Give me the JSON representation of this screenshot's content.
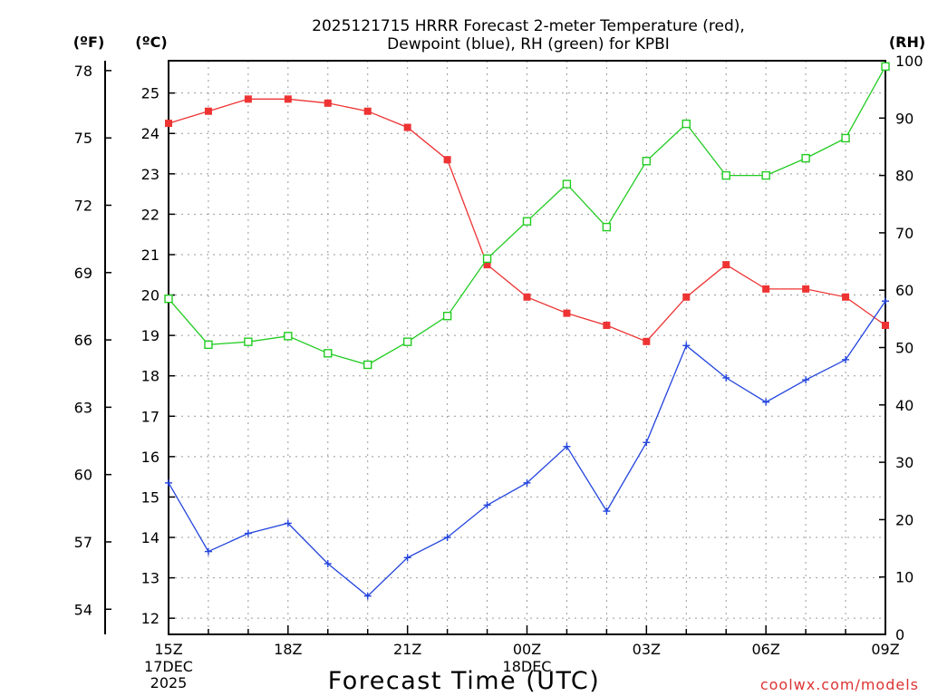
{
  "chart_data": {
    "type": "line",
    "title_line1": "2025121715 HRRR Forecast 2-meter Temperature (red),",
    "title_line2": "Dewpoint (blue), RH (green) for KPBI",
    "unit_labels": {
      "fahrenheit": "(ºF)",
      "celsius": "(ºC)",
      "rh": "(RH)"
    },
    "xlabel": "Forecast Time (UTC)",
    "credit": "coolwx.com/models",
    "x_hours": [
      0,
      1,
      2,
      3,
      4,
      5,
      6,
      7,
      8,
      9,
      10,
      11,
      12,
      13,
      14,
      15,
      16,
      17,
      18
    ],
    "x_ticks": [
      {
        "hour": 0,
        "label": "15Z",
        "sub1": "17DEC",
        "sub2": "2025"
      },
      {
        "hour": 3,
        "label": "18Z",
        "sub1": "",
        "sub2": ""
      },
      {
        "hour": 6,
        "label": "21Z",
        "sub1": "",
        "sub2": ""
      },
      {
        "hour": 9,
        "label": "00Z",
        "sub1": "18DEC",
        "sub2": ""
      },
      {
        "hour": 12,
        "label": "03Z",
        "sub1": "",
        "sub2": ""
      },
      {
        "hour": 15,
        "label": "06Z",
        "sub1": "",
        "sub2": ""
      },
      {
        "hour": 18,
        "label": "09Z",
        "sub1": "",
        "sub2": ""
      }
    ],
    "celsius_axis": {
      "range": [
        11.6,
        25.8
      ],
      "ticks": [
        12,
        13,
        14,
        15,
        16,
        17,
        18,
        19,
        20,
        21,
        22,
        23,
        24,
        25
      ]
    },
    "fahrenheit_axis": {
      "ticks": [
        54,
        57,
        60,
        63,
        66,
        69,
        72,
        75,
        78
      ]
    },
    "rh_axis": {
      "range": [
        0,
        100
      ],
      "ticks": [
        0,
        10,
        20,
        30,
        40,
        50,
        60,
        70,
        80,
        90,
        100
      ]
    },
    "series": [
      {
        "name": "Temperature",
        "unit": "C",
        "color": "#ee3333",
        "marker": "filled-square",
        "values": [
          24.25,
          24.55,
          24.85,
          24.85,
          24.75,
          24.55,
          24.15,
          23.35,
          20.75,
          19.95,
          19.55,
          19.25,
          18.85,
          19.95,
          20.75,
          20.15,
          20.15,
          19.95,
          19.25
        ]
      },
      {
        "name": "Dewpoint",
        "unit": "C",
        "color": "#2244dd",
        "marker": "plus",
        "values": [
          15.35,
          13.65,
          14.1,
          14.35,
          13.35,
          12.55,
          13.5,
          14.0,
          14.8,
          15.35,
          16.25,
          14.65,
          16.35,
          18.75,
          17.95,
          17.35,
          17.9,
          18.4,
          19.85
        ]
      },
      {
        "name": "RH",
        "unit": "%",
        "color": "#22cc22",
        "marker": "open-square",
        "values": [
          58.5,
          50.5,
          51.0,
          52.0,
          49.0,
          47.0,
          51.0,
          55.5,
          65.5,
          72.0,
          78.5,
          71.0,
          82.5,
          89.0,
          80.0,
          80.0,
          83.0,
          86.5,
          99.0
        ]
      }
    ]
  }
}
